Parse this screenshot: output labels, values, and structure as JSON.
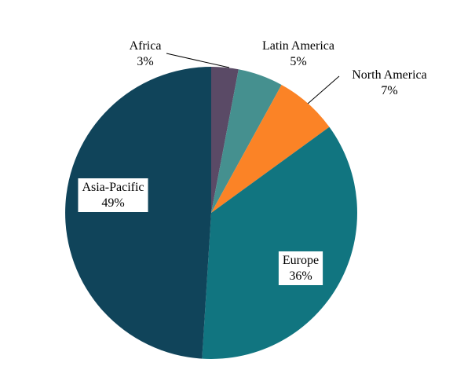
{
  "chart_data": {
    "type": "pie",
    "title": "",
    "slices": [
      {
        "label": "Africa",
        "value": 3,
        "value_label": "3%",
        "color": "#5a4a66"
      },
      {
        "label": "Latin America",
        "value": 5,
        "value_label": "5%",
        "color": "#45908f"
      },
      {
        "label": "North America",
        "value": 7,
        "value_label": "7%",
        "color": "#fb8326"
      },
      {
        "label": "Europe",
        "value": 36,
        "value_label": "36%",
        "color": "#117580"
      },
      {
        "label": "Asia-Pacific",
        "value": 49,
        "value_label": "49%",
        "color": "#10445a"
      }
    ],
    "start_angle_deg": 0,
    "direction": "clockwise",
    "legend": "none"
  }
}
